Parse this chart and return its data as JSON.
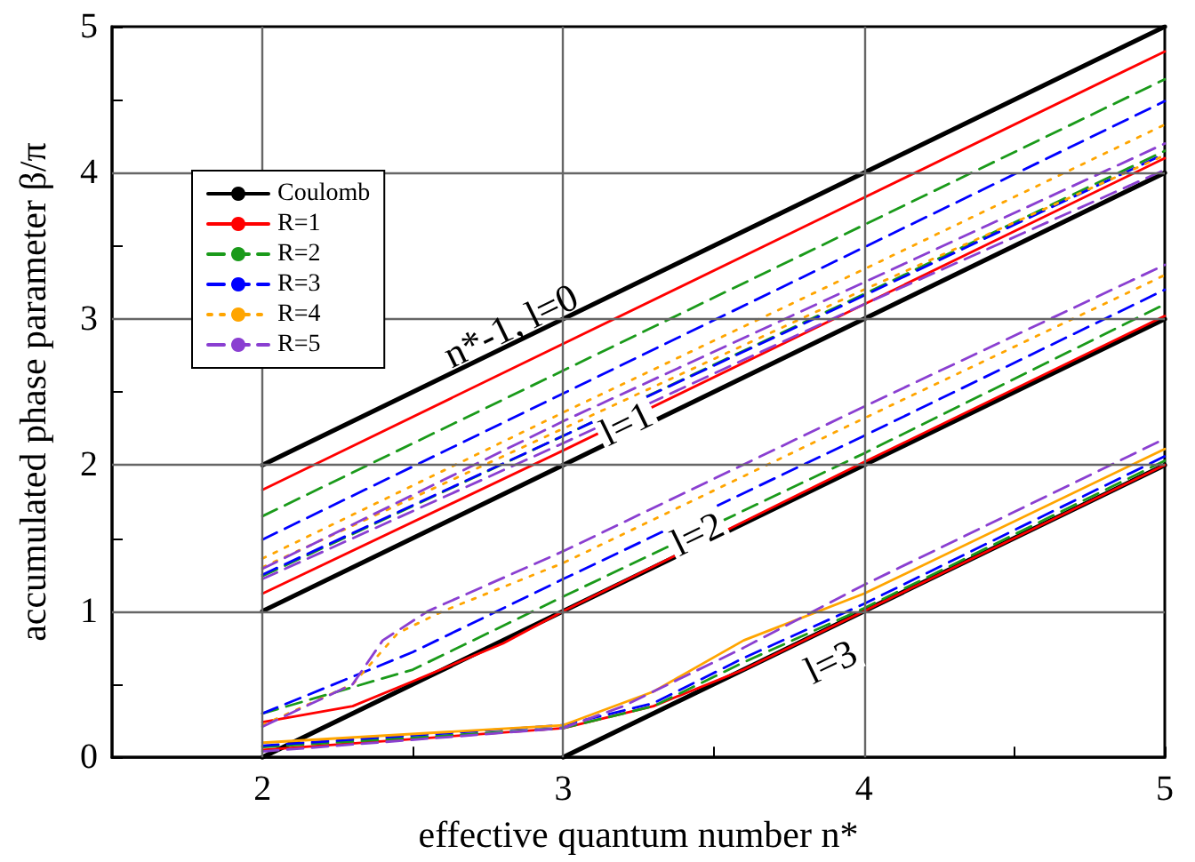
{
  "chart_data": {
    "type": "line",
    "xlabel": "effective quantum number n*",
    "ylabel": "accumulated phase parameter β/π",
    "xlim": [
      1.5,
      5
    ],
    "ylim": [
      0,
      5
    ],
    "xticks": [
      2,
      {
        "value": 2.5,
        "label": null
      },
      3,
      {
        "value": 3.5,
        "label": null
      },
      4,
      {
        "value": 4.5,
        "label": null
      },
      5
    ],
    "yticks": [
      0,
      {
        "value": 0.5,
        "label": null
      },
      1,
      {
        "value": 1.5,
        "label": null
      },
      2,
      {
        "value": 2.5,
        "label": null
      },
      3,
      {
        "value": 3.5,
        "label": null
      },
      4,
      {
        "value": 4.5,
        "label": null
      },
      5
    ],
    "grid": true,
    "legend": "top left",
    "marker": "none",
    "annotations": [
      "n*-1, l=0",
      "l=1",
      "l=2",
      "l=3"
    ],
    "series": [
      {
        "name": "Coulomb",
        "color": "#000000",
        "line_style": "solid",
        "x": [
          2,
          5
        ],
        "values": [
          2,
          5
        ]
      },
      {
        "color": "#000000",
        "line_style": "solid",
        "x": [
          2,
          5
        ],
        "values": [
          1,
          4
        ]
      },
      {
        "color": "#000000",
        "line_style": "solid",
        "x": [
          2,
          5
        ],
        "values": [
          0,
          3
        ]
      },
      {
        "color": "#000000",
        "line_style": "solid",
        "x": [
          3,
          5
        ],
        "values": [
          0,
          2
        ]
      },
      {
        "name": "R=1",
        "color": "#ff0000",
        "line_style": "solid",
        "x": [
          2,
          5
        ],
        "values": [
          1.83,
          4.83
        ]
      },
      {
        "color": "#ff0000",
        "line_style": "solid",
        "x": [
          2,
          3,
          4,
          5
        ],
        "values": [
          1.12,
          2.1,
          3.1,
          4.1
        ]
      },
      {
        "color": "#ff0000",
        "line_style": "solid",
        "x": [
          2,
          2.3,
          2.5,
          2.8,
          3,
          4,
          5
        ],
        "values": [
          0.24,
          0.35,
          0.52,
          0.78,
          1,
          2.02,
          3.02
        ]
      },
      {
        "color": "#ff0000",
        "line_style": "solid",
        "x": [
          2,
          3,
          3.3,
          3.6,
          4,
          5
        ],
        "values": [
          0.05,
          0.2,
          0.35,
          0.6,
          1,
          2
        ]
      },
      {
        "name": "R=2",
        "color": "#1a9a1a",
        "line_style": "dashed",
        "x": [
          2,
          5
        ],
        "values": [
          1.65,
          4.64
        ]
      },
      {
        "color": "#1a9a1a",
        "line_style": "dashed",
        "x": [
          2,
          3,
          4,
          5
        ],
        "values": [
          1.24,
          2.2,
          3.17,
          4.15
        ]
      },
      {
        "color": "#1a9a1a",
        "line_style": "dashed",
        "x": [
          2,
          2.5,
          3,
          4,
          5
        ],
        "values": [
          0.3,
          0.6,
          1.1,
          2.08,
          3.1
        ]
      },
      {
        "color": "#1a9a1a",
        "line_style": "dashed",
        "x": [
          2,
          3,
          3.3,
          3.6,
          4,
          5
        ],
        "values": [
          0.07,
          0.2,
          0.35,
          0.65,
          1.02,
          2.03
        ]
      },
      {
        "name": "R=3",
        "color": "#0000ff",
        "line_style": "dashed",
        "x": [
          2,
          5
        ],
        "values": [
          1.49,
          4.49
        ]
      },
      {
        "color": "#0000ff",
        "line_style": "dashed",
        "x": [
          2,
          3,
          4,
          5
        ],
        "values": [
          1.25,
          2.2,
          3.16,
          4.13
        ]
      },
      {
        "color": "#0000ff",
        "line_style": "dashed",
        "x": [
          2,
          2.5,
          3,
          4,
          5
        ],
        "values": [
          0.3,
          0.72,
          1.22,
          2.2,
          3.2
        ]
      },
      {
        "color": "#0000ff",
        "line_style": "dashed",
        "x": [
          2,
          3,
          3.3,
          3.6,
          4,
          5
        ],
        "values": [
          0.08,
          0.22,
          0.37,
          0.68,
          1.05,
          2.06
        ]
      },
      {
        "name": "R=4",
        "color": "#ffa500",
        "line_style": "dotted",
        "x": [
          2,
          3,
          4,
          5
        ],
        "values": [
          1.36,
          2.36,
          3.34,
          4.33
        ]
      },
      {
        "color": "#ffa500",
        "line_style": "dotted",
        "x": [
          2,
          3,
          4,
          5
        ],
        "values": [
          1.3,
          2.25,
          3.2,
          4.12
        ]
      },
      {
        "color": "#ffa500",
        "line_style": "dotted",
        "x": [
          2,
          2.3,
          2.45,
          2.6,
          3,
          4,
          5
        ],
        "values": [
          0.22,
          0.5,
          0.85,
          1,
          1.33,
          2.32,
          3.3
        ]
      },
      {
        "color": "#ffa500",
        "line_style": "solid",
        "x": [
          2,
          3,
          3.3,
          3.6,
          4,
          5
        ],
        "values": [
          0.1,
          0.22,
          0.45,
          0.8,
          1.12,
          2.11
        ]
      },
      {
        "name": "R=5",
        "color": "#8a3fd1",
        "line_style": "dashed",
        "x": [
          2,
          3,
          4,
          5
        ],
        "values": [
          1.29,
          2.3,
          3.25,
          4.2
        ]
      },
      {
        "color": "#8a3fd1",
        "line_style": "dashed",
        "x": [
          2,
          3,
          4,
          5
        ],
        "values": [
          1.22,
          2.15,
          3.1,
          4.02
        ]
      },
      {
        "color": "#8a3fd1",
        "line_style": "dashed",
        "x": [
          2,
          2.3,
          2.4,
          2.55,
          3,
          4,
          5
        ],
        "values": [
          0.21,
          0.5,
          0.8,
          1,
          1.41,
          2.4,
          3.37
        ]
      },
      {
        "color": "#8a3fd1",
        "line_style": "dashed",
        "x": [
          2,
          3,
          3.2,
          3.6,
          4,
          5
        ],
        "values": [
          0.04,
          0.2,
          0.35,
          0.75,
          1.18,
          2.18
        ]
      }
    ]
  }
}
